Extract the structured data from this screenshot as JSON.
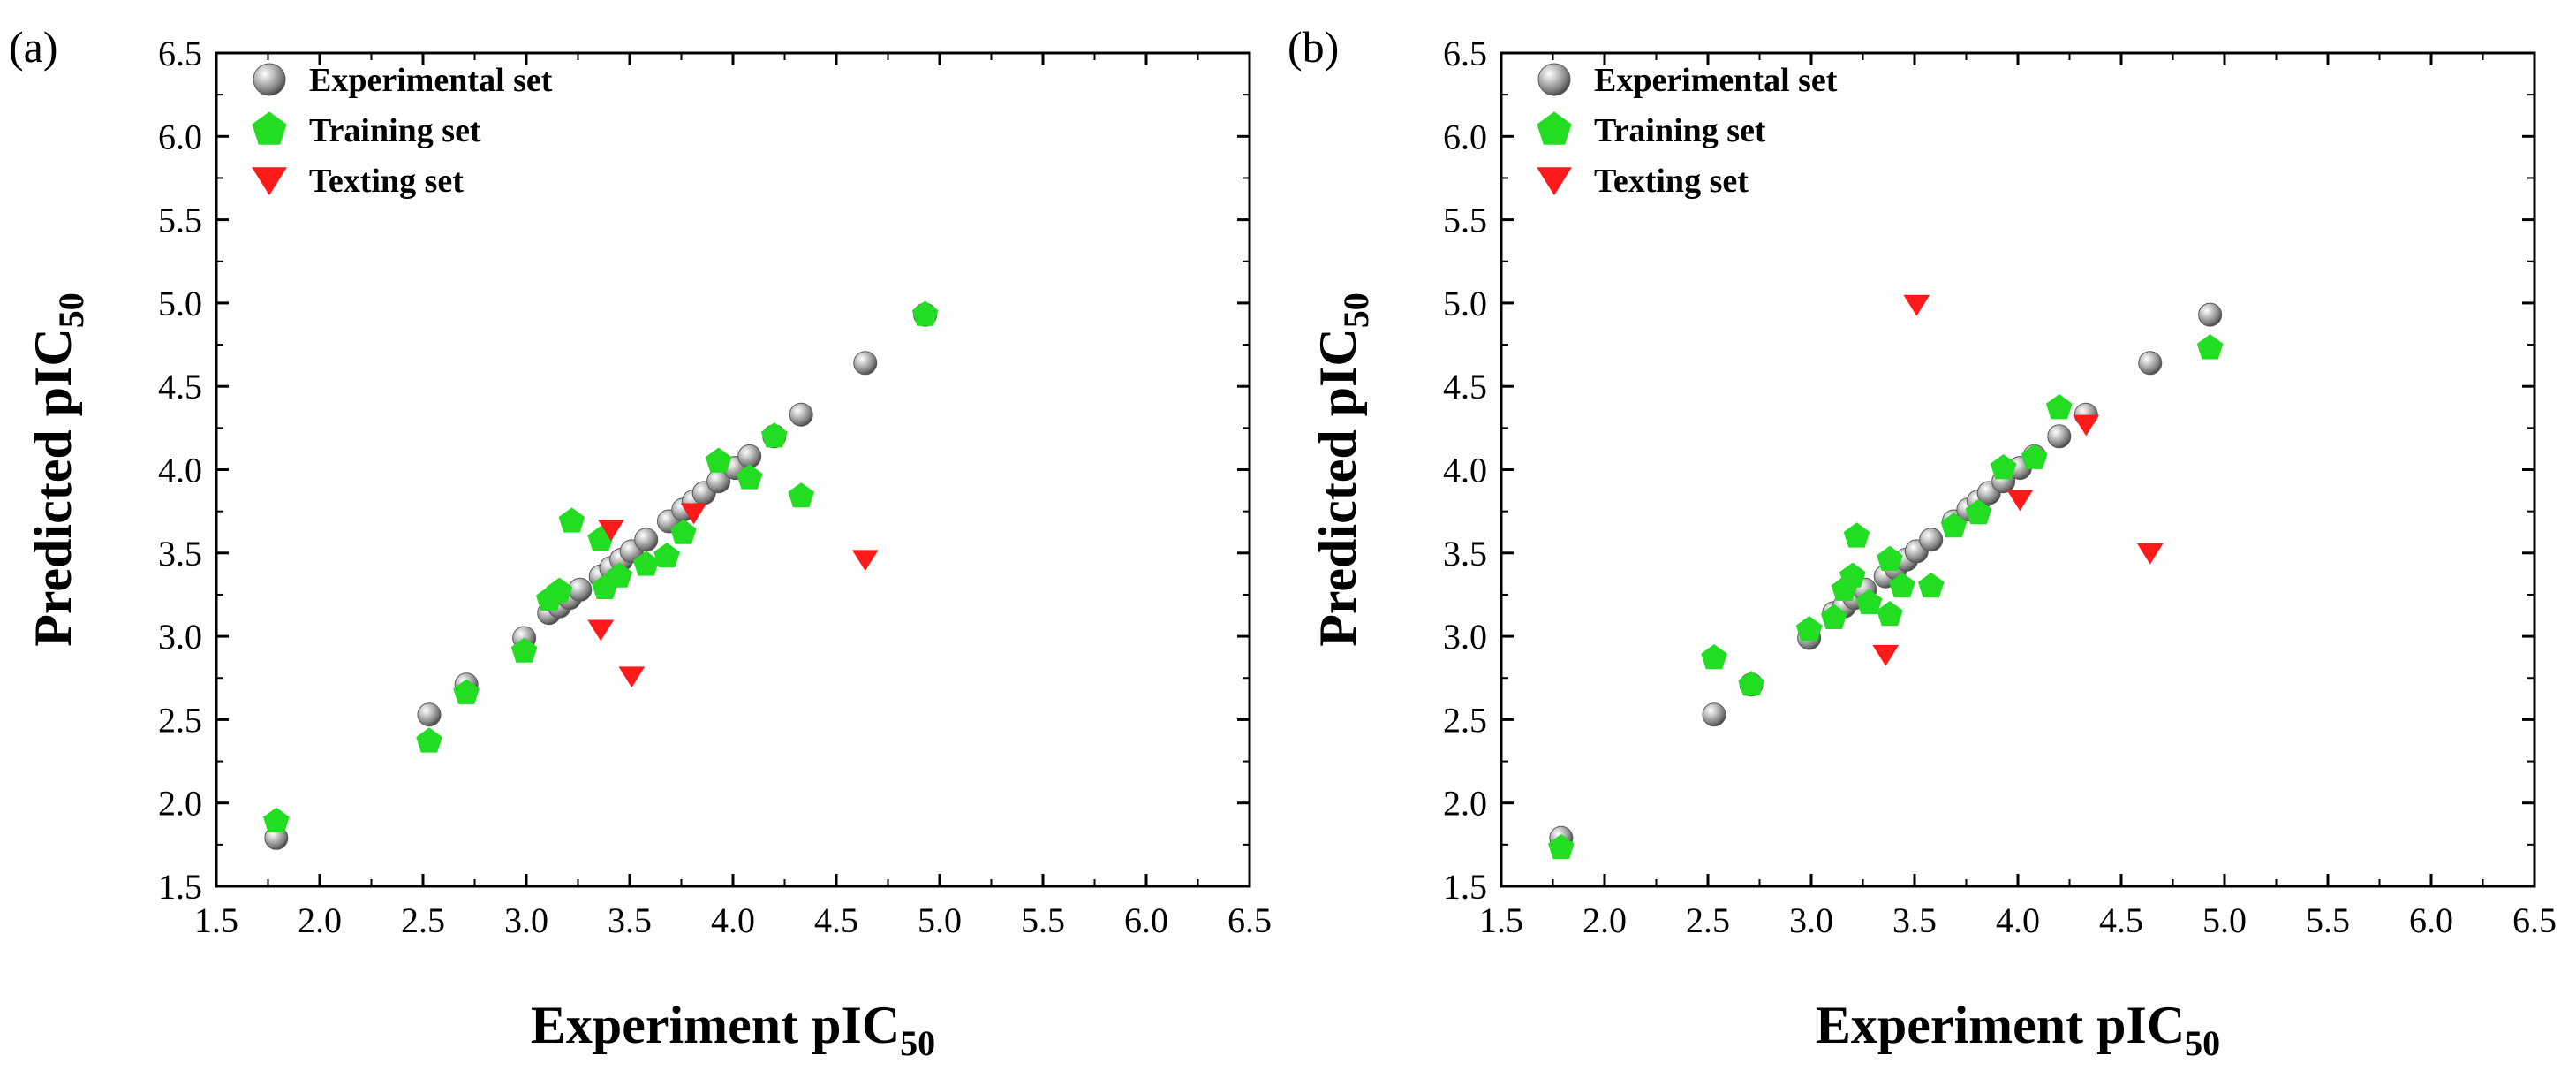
{
  "chart_data": [
    {
      "type": "scatter",
      "panel_label": "(a)",
      "xlabel": "Experiment pIC",
      "xlabel_sub": "50",
      "ylabel": "Predicted pIC",
      "ylabel_sub": "50",
      "xlim": [
        1.5,
        6.5
      ],
      "ylim": [
        1.5,
        6.5
      ],
      "xticks": [
        "1.5",
        "2.0",
        "2.5",
        "3.0",
        "3.5",
        "4.0",
        "4.5",
        "5.0",
        "5.5",
        "6.0",
        "6.5"
      ],
      "yticks": [
        "1.5",
        "2.0",
        "2.5",
        "3.0",
        "3.5",
        "4.0",
        "4.5",
        "5.0",
        "5.5",
        "6.0",
        "6.5"
      ],
      "legend_position": "top-left",
      "series": [
        {
          "name": "Experimental set",
          "marker": "sphere",
          "color": "#8c8c8c",
          "points": [
            [
              1.79,
              1.79
            ],
            [
              2.53,
              2.53
            ],
            [
              2.71,
              2.71
            ],
            [
              2.99,
              2.99
            ],
            [
              3.11,
              3.14
            ],
            [
              3.16,
              3.18
            ],
            [
              3.21,
              3.23
            ],
            [
              3.26,
              3.28
            ],
            [
              3.36,
              3.36
            ],
            [
              3.41,
              3.41
            ],
            [
              3.46,
              3.46
            ],
            [
              3.51,
              3.51
            ],
            [
              3.58,
              3.58
            ],
            [
              3.69,
              3.69
            ],
            [
              3.76,
              3.76
            ],
            [
              3.81,
              3.81
            ],
            [
              3.86,
              3.86
            ],
            [
              3.93,
              3.93
            ],
            [
              4.01,
              4.01
            ],
            [
              4.08,
              4.08
            ],
            [
              4.2,
              4.2
            ],
            [
              4.33,
              4.33
            ],
            [
              4.64,
              4.64
            ],
            [
              4.93,
              4.93
            ]
          ]
        },
        {
          "name": "Training set",
          "marker": "pentagon",
          "color": "#22dd22",
          "points": [
            [
              1.79,
              1.89
            ],
            [
              2.53,
              2.37
            ],
            [
              2.71,
              2.66
            ],
            [
              2.99,
              2.91
            ],
            [
              3.11,
              3.22
            ],
            [
              3.16,
              3.27
            ],
            [
              3.22,
              3.69
            ],
            [
              3.36,
              3.58
            ],
            [
              3.38,
              3.29
            ],
            [
              3.45,
              3.36
            ],
            [
              3.58,
              3.43
            ],
            [
              3.68,
              3.48
            ],
            [
              3.76,
              3.62
            ],
            [
              3.93,
              4.05
            ],
            [
              4.08,
              3.95
            ],
            [
              4.2,
              4.2
            ],
            [
              4.33,
              3.84
            ],
            [
              4.93,
              4.93
            ]
          ]
        },
        {
          "name": "Texting set",
          "marker": "triangle-down",
          "color": "#ff1a1a",
          "points": [
            [
              3.36,
              3.04
            ],
            [
              3.41,
              3.64
            ],
            [
              3.51,
              2.76
            ],
            [
              3.81,
              3.74
            ],
            [
              4.64,
              3.46
            ]
          ]
        }
      ]
    },
    {
      "type": "scatter",
      "panel_label": "(b)",
      "xlabel": "Experiment pIC",
      "xlabel_sub": "50",
      "ylabel": "Predicted pIC",
      "ylabel_sub": "50",
      "xlim": [
        1.5,
        6.5
      ],
      "ylim": [
        1.5,
        6.5
      ],
      "xticks": [
        "1.5",
        "2.0",
        "2.5",
        "3.0",
        "3.5",
        "4.0",
        "4.5",
        "5.0",
        "5.5",
        "6.0",
        "6.5"
      ],
      "yticks": [
        "1.5",
        "2.0",
        "2.5",
        "3.0",
        "3.5",
        "4.0",
        "4.5",
        "5.0",
        "5.5",
        "6.0",
        "6.5"
      ],
      "legend_position": "top-left",
      "series": [
        {
          "name": "Experimental set",
          "marker": "sphere",
          "color": "#8c8c8c",
          "points": [
            [
              1.79,
              1.79
            ],
            [
              2.53,
              2.53
            ],
            [
              2.71,
              2.71
            ],
            [
              2.99,
              2.99
            ],
            [
              3.11,
              3.14
            ],
            [
              3.16,
              3.18
            ],
            [
              3.21,
              3.23
            ],
            [
              3.26,
              3.28
            ],
            [
              3.36,
              3.36
            ],
            [
              3.41,
              3.41
            ],
            [
              3.46,
              3.46
            ],
            [
              3.51,
              3.51
            ],
            [
              3.58,
              3.58
            ],
            [
              3.69,
              3.69
            ],
            [
              3.76,
              3.76
            ],
            [
              3.81,
              3.81
            ],
            [
              3.86,
              3.86
            ],
            [
              3.93,
              3.93
            ],
            [
              4.01,
              4.01
            ],
            [
              4.08,
              4.08
            ],
            [
              4.2,
              4.2
            ],
            [
              4.33,
              4.33
            ],
            [
              4.64,
              4.64
            ],
            [
              4.93,
              4.93
            ]
          ]
        },
        {
          "name": "Training set",
          "marker": "pentagon",
          "color": "#22dd22",
          "points": [
            [
              1.79,
              1.73
            ],
            [
              2.53,
              2.87
            ],
            [
              2.71,
              2.71
            ],
            [
              2.99,
              3.04
            ],
            [
              3.11,
              3.11
            ],
            [
              3.16,
              3.28
            ],
            [
              3.2,
              3.36
            ],
            [
              3.22,
              3.6
            ],
            [
              3.28,
              3.2
            ],
            [
              3.38,
              3.46
            ],
            [
              3.38,
              3.13
            ],
            [
              3.44,
              3.3
            ],
            [
              3.58,
              3.3
            ],
            [
              3.69,
              3.66
            ],
            [
              3.81,
              3.74
            ],
            [
              3.93,
              4.01
            ],
            [
              4.08,
              4.07
            ],
            [
              4.2,
              4.37
            ],
            [
              4.93,
              4.73
            ]
          ]
        },
        {
          "name": "Texting set",
          "marker": "triangle-down",
          "color": "#ff1a1a",
          "points": [
            [
              3.36,
              2.89
            ],
            [
              3.51,
              4.99
            ],
            [
              4.01,
              3.82
            ],
            [
              4.33,
              4.27
            ],
            [
              4.64,
              3.5
            ]
          ]
        }
      ]
    }
  ]
}
